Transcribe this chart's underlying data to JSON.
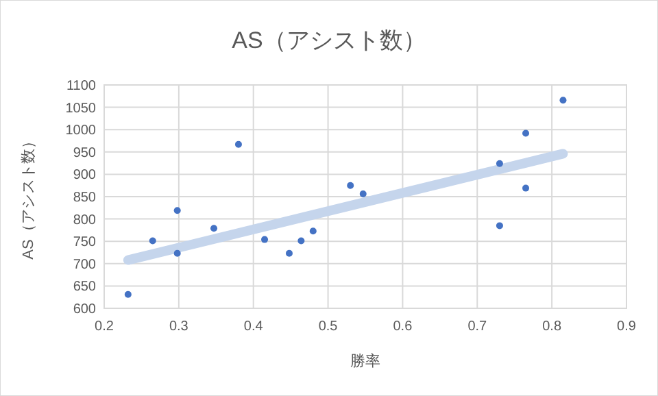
{
  "chart_data": {
    "type": "scatter",
    "title": "AS（アシスト数）",
    "xlabel": "勝率",
    "ylabel": "AS（アシスト数）",
    "xlim": [
      0.2,
      0.9
    ],
    "xticks": [
      0.2,
      0.3,
      0.4,
      0.5,
      0.6,
      0.7,
      0.8,
      0.9
    ],
    "ylim": [
      600,
      1100
    ],
    "yticks": [
      600,
      650,
      700,
      750,
      800,
      850,
      900,
      950,
      1000,
      1050,
      1100
    ],
    "grid": true,
    "series": [
      {
        "color": "#4472c4",
        "marker": "circle",
        "x": [
          0.232,
          0.265,
          0.298,
          0.298,
          0.347,
          0.38,
          0.415,
          0.448,
          0.464,
          0.48,
          0.53,
          0.547,
          0.73,
          0.73,
          0.765,
          0.765,
          0.815
        ],
        "values": [
          631,
          751,
          819,
          723,
          779,
          967,
          754,
          723,
          751,
          773,
          875,
          856,
          924,
          785,
          992,
          869,
          1066
        ]
      },
      {
        "type": "line",
        "color": "#c5d5ec",
        "x": [
          0.232,
          0.815
        ],
        "values": [
          708,
          946
        ]
      }
    ]
  }
}
